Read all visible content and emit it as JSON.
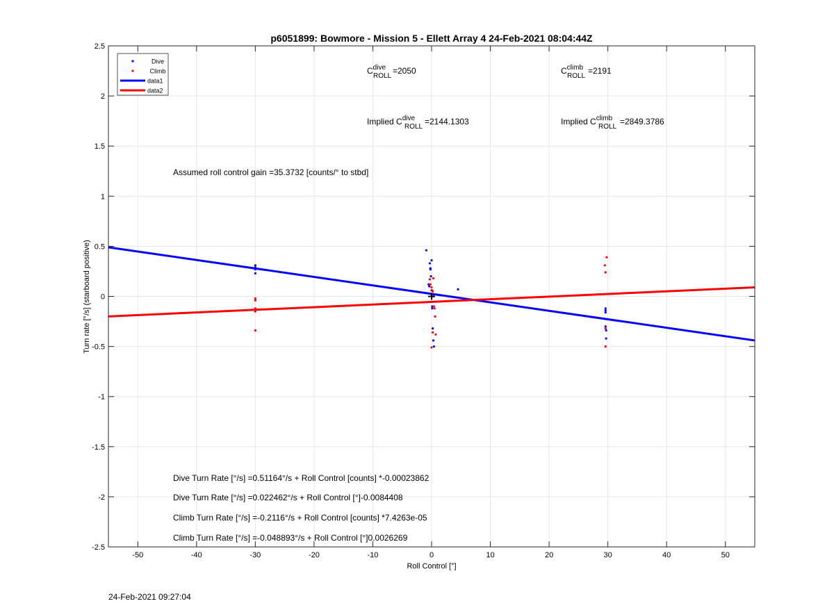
{
  "chart_data": {
    "type": "scatter",
    "title": "p6051899: Bowmore - Mission 5 - Ellett Array 4 24-Feb-2021 08:04:44Z",
    "xlabel": "Roll Control [°]",
    "ylabel": "Turn rate [°/s] (starboard positive)",
    "xlim": [
      -55,
      55
    ],
    "ylim": [
      -2.5,
      2.5
    ],
    "xticks": [
      "-50",
      "-40",
      "-30",
      "-20",
      "-10",
      "0",
      "10",
      "20",
      "30",
      "40",
      "50"
    ],
    "yticks": [
      "2.5",
      "2",
      "1.5",
      "1",
      "0.5",
      "0",
      "-0.5",
      "-1",
      "-1.5",
      "-2",
      "-2.5"
    ],
    "grid": true,
    "legend_position": "top-left",
    "legend": [
      {
        "label": "Dive",
        "kind": "marker",
        "color": "#0000ff"
      },
      {
        "label": "Climb",
        "kind": "marker",
        "color": "#ff0000"
      },
      {
        "label": "data1",
        "kind": "line",
        "color": "#0000ff"
      },
      {
        "label": "data2",
        "kind": "line",
        "color": "#ff0000"
      }
    ],
    "series": [
      {
        "name": "Dive",
        "kind": "scatter",
        "color": "#0000ff",
        "x": [
          -30,
          -30,
          -30,
          -30,
          -0.9,
          -0.5,
          -0.4,
          -0.3,
          -0.2,
          -0.1,
          0,
          0,
          0.1,
          0.1,
          0.2,
          0.3,
          0.4,
          0,
          -0.2,
          4.5,
          29.6,
          29.6,
          29.6,
          29.6,
          29.7,
          29.7
        ],
        "y": [
          0.29,
          0.27,
          0.23,
          0.31,
          0.46,
          0.12,
          0.1,
          0.33,
          0.27,
          0.2,
          0.06,
          0.02,
          -0.1,
          -0.12,
          -0.32,
          -0.44,
          -0.5,
          0.36,
          0.28,
          0.07,
          -0.12,
          -0.14,
          -0.16,
          -0.3,
          -0.34,
          -0.42
        ]
      },
      {
        "name": "Climb",
        "kind": "scatter",
        "color": "#ff0000",
        "x": [
          -30,
          -30,
          -30,
          -30,
          -30,
          -0.3,
          -0.2,
          0,
          0.1,
          0.2,
          0.3,
          0.4,
          0.5,
          0.6,
          0.7,
          0,
          0.2,
          0.3,
          29.5,
          29.6,
          29.6,
          29.8,
          29.6
        ],
        "y": [
          -0.02,
          -0.04,
          -0.12,
          -0.15,
          -0.34,
          0.17,
          0.12,
          0.09,
          0.06,
          0.05,
          0.18,
          -0.1,
          -0.12,
          -0.2,
          -0.38,
          -0.51,
          -0.36,
          0.0,
          0.31,
          0.24,
          -0.32,
          0.39,
          -0.5
        ]
      },
      {
        "name": "data1",
        "kind": "line",
        "color": "#0000ff",
        "x": [
          -55,
          55
        ],
        "y": [
          0.49,
          -0.44
        ]
      },
      {
        "name": "data2",
        "kind": "line",
        "color": "#ff0000",
        "x": [
          -55,
          55
        ],
        "y": [
          -0.2,
          0.09
        ]
      }
    ],
    "annotations": {
      "c_dive": {
        "base": "C",
        "sup": "dive",
        "sub": "ROLL",
        "value": "=2050"
      },
      "c_climb": {
        "base": "C",
        "sup": "climb",
        "sub": "ROLL",
        "value": "=2191"
      },
      "implied_dive": {
        "prefix": "Implied C",
        "sup": "dive",
        "sub": "ROLL",
        "value": "=2144.1303"
      },
      "implied_climb": {
        "prefix": "Implied C",
        "sup": "climb",
        "sub": "ROLL",
        "value": "=2849.3786"
      },
      "gain": "Assumed roll control gain =35.3732 [counts/° to stbd]",
      "equations": [
        "Dive Turn Rate [°/s] =0.51164°/s + Roll Control [counts] *-0.00023862",
        "Dive Turn Rate [°/s] =0.022462°/s + Roll Control [°]-0.0084408",
        "Climb Turn Rate [°/s] =-0.2116°/s + Roll Control [counts] *7.4263e-05",
        "Climb Turn Rate [°/s] =-0.048893°/s + Roll Control [°]0.0026269"
      ]
    }
  },
  "footer": {
    "timestamp": "24-Feb-2021 09:27:04"
  }
}
